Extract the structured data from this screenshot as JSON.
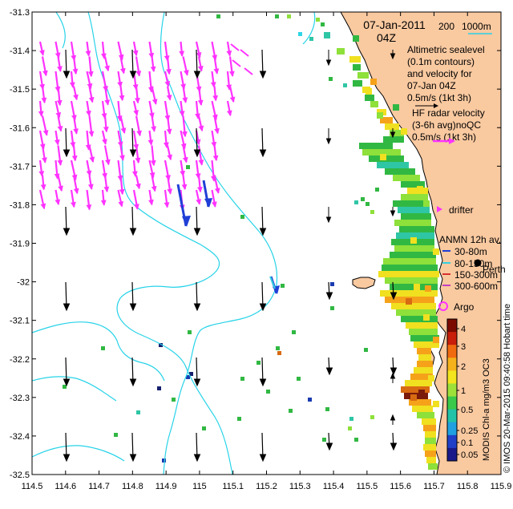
{
  "header": {
    "date": "07-Jan-2011",
    "time": "04Z",
    "scale_label_200": "200",
    "scale_label_1000": "1000m"
  },
  "legend": {
    "altimetric_lines": [
      "Altimetric sealevel",
      "(0.1m contours)",
      "and velocity for",
      "07-Jan 04Z",
      "0.5m/s (1kt 3h)"
    ],
    "hf_lines": [
      "HF radar velocity",
      "(3-6h avg)noQC",
      "0.5m/s (1kt 3h)"
    ],
    "drifter_label": "drifter",
    "anmn_title": "ANMN 12h av.",
    "anmn_items": [
      {
        "label": "30-80m",
        "color": "#1f3fd6"
      },
      {
        "label": "80-150m",
        "color": "#33d0e0"
      },
      {
        "label": "150-300m",
        "color": "#d63030"
      },
      {
        "label": "300-600m",
        "color": "#c040c0"
      }
    ],
    "perth_label": "Perth",
    "argo_label": "Argo"
  },
  "colorbar": {
    "title": "MODIS Chl-a mg/m3 OC3",
    "ticks": [
      "4",
      "3",
      "2",
      "1",
      "0.5",
      "0.25",
      "0.1",
      "0.05"
    ]
  },
  "credit": "© IMOS 20-Mar-2015 09:40:58 Hobart time",
  "axes": {
    "xlim": [
      114.5,
      115.9
    ],
    "ylim": [
      -32.5,
      -31.3
    ],
    "x_ticks": [
      "114.5",
      "114.6",
      "114.7",
      "114.8",
      "114.9",
      "115",
      "115.1",
      "115.2",
      "115.3",
      "115.4",
      "115.5",
      "115.6",
      "115.7",
      "115.8",
      "115.9"
    ],
    "y_ticks": [
      "-31.3",
      "-31.4",
      "-31.5",
      "-31.6",
      "-31.7",
      "-31.8",
      "-31.9",
      "-32",
      "-32.1",
      "-32.2",
      "-32.3",
      "-32.4",
      "-32.5"
    ]
  },
  "colors": {
    "land": "#f9c9a0",
    "contour": "#27d3e8",
    "hf_vector": "#ff33ff",
    "alt_vector": "#000000",
    "mooring_vector": "#1f3fd6",
    "argo": "#ff33ff"
  }
}
